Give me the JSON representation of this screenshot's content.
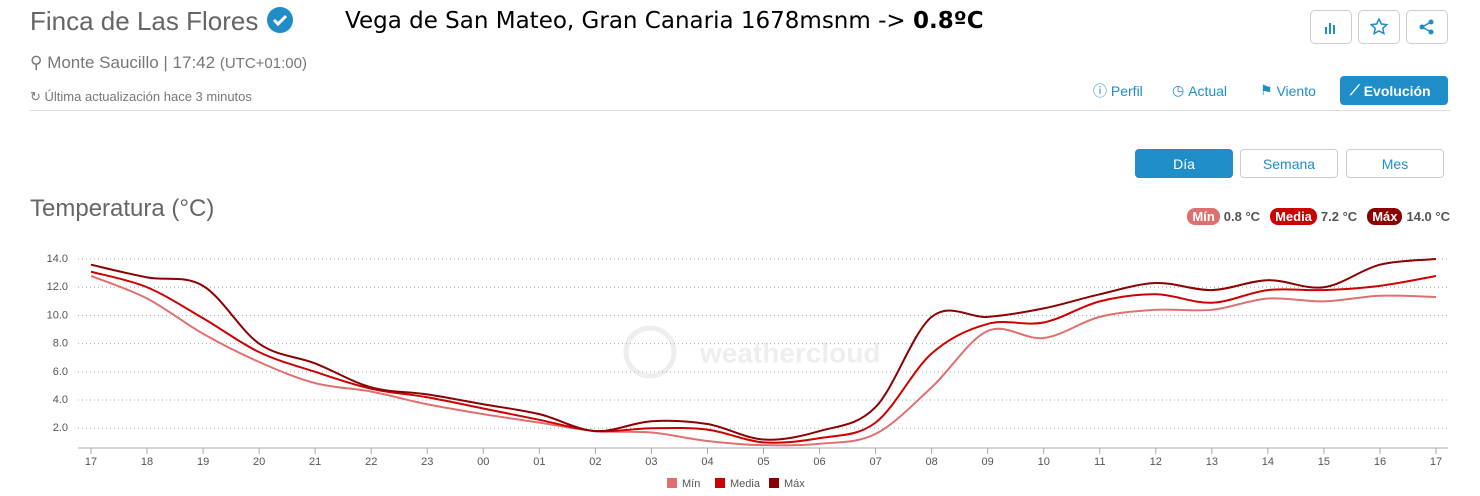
{
  "header": {
    "title": "Finca de Las Flores",
    "annotation": "Vega de San Mateo, Gran Canaria 1678msnm -> ",
    "annotation_value": "0.8ºC",
    "location": "Monte Saucillo | 17:42",
    "timezone": "(UTC+01:00)",
    "updated": "Última actualización hace 3 minutos"
  },
  "nav": [
    "Perfil",
    "Actual",
    "Viento",
    "Evolución"
  ],
  "periods": [
    "Día",
    "Semana",
    "Mes"
  ],
  "summary": [
    {
      "name": "Mín",
      "text": "0.8 °C"
    },
    {
      "name": "Media",
      "text": "7.2 °C"
    },
    {
      "name": "Máx",
      "text": "14.0 °C"
    }
  ],
  "watermark": "weathercloud",
  "chart_data": {
    "type": "line",
    "title": "Temperatura (°C)",
    "categories": [
      "17",
      "18",
      "19",
      "20",
      "21",
      "22",
      "23",
      "00",
      "01",
      "02",
      "03",
      "04",
      "05",
      "06",
      "07",
      "08",
      "09",
      "10",
      "11",
      "12",
      "13",
      "14",
      "15",
      "16",
      "17"
    ],
    "series": [
      {
        "name": "Mín",
        "color": "#e07070",
        "values": [
          12.8,
          11.2,
          8.7,
          6.7,
          5.2,
          4.6,
          3.7,
          3.0,
          2.4,
          1.8,
          1.7,
          1.1,
          0.8,
          0.9,
          1.6,
          4.9,
          8.9,
          8.4,
          9.9,
          10.4,
          10.4,
          11.2,
          11.0,
          11.4,
          11.3
        ]
      },
      {
        "name": "Media",
        "color": "#cc0000",
        "values": [
          13.1,
          12.0,
          9.8,
          7.4,
          6.0,
          4.8,
          4.2,
          3.4,
          2.6,
          1.8,
          2.0,
          1.9,
          1.0,
          1.3,
          2.4,
          7.3,
          9.4,
          9.5,
          11.0,
          11.5,
          10.9,
          11.8,
          11.8,
          12.1,
          12.8
        ]
      },
      {
        "name": "Máx",
        "color": "#8b0000",
        "values": [
          13.6,
          12.7,
          12.1,
          8.0,
          6.6,
          4.9,
          4.4,
          3.7,
          3.0,
          1.8,
          2.5,
          2.3,
          1.2,
          1.8,
          3.5,
          9.9,
          9.9,
          10.5,
          11.5,
          12.3,
          11.8,
          12.5,
          12.0,
          13.6,
          14.0
        ]
      }
    ],
    "ylim": [
      0.6,
      14.5
    ],
    "yticks": [
      {
        "value": 2,
        "label": "2.0"
      },
      {
        "value": 4,
        "label": "4.0"
      },
      {
        "value": 6,
        "label": "6.0"
      },
      {
        "value": 8,
        "label": "8.0"
      },
      {
        "value": 10,
        "label": "10.0"
      },
      {
        "value": 12,
        "label": "12.0"
      },
      {
        "value": 14,
        "label": "14.0"
      }
    ],
    "grid": true
  }
}
